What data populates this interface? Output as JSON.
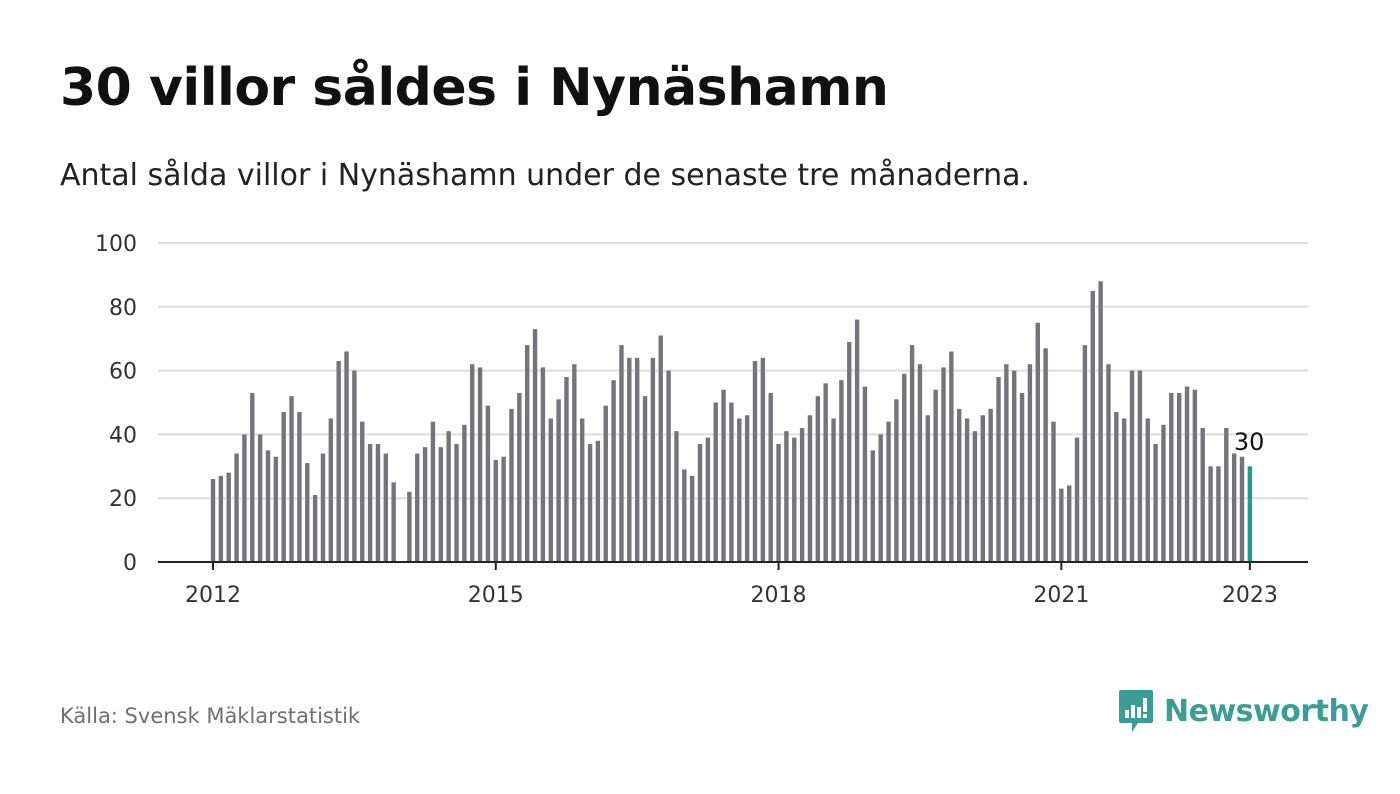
{
  "title": "30 villor såldes i Nynäshamn",
  "subtitle": "Antal sålda villor i Nynäshamn under de senaste tre månaderna.",
  "source": "Källa: Svensk Mäklarstatistik",
  "brand": {
    "name": "Newsworthy",
    "icon": "newsworthy-logo-icon",
    "color": "#3a9e96"
  },
  "colors": {
    "bar": "#74747a",
    "highlight": "#1a9e8f",
    "grid": "#dddddd",
    "axis": "#222222"
  },
  "chart_data": {
    "type": "bar",
    "title": "30 villor såldes i Nynäshamn",
    "subtitle": "Antal sålda villor i Nynäshamn under de senaste tre månaderna.",
    "xlabel": "",
    "ylabel": "",
    "ylim": [
      0,
      100
    ],
    "yticks": [
      0,
      20,
      40,
      60,
      80,
      100
    ],
    "xticks": [
      "2012",
      "2015",
      "2018",
      "2021",
      "2023"
    ],
    "grid": true,
    "start": "2012-01",
    "end": "2023-01",
    "annotation": {
      "label": "30",
      "period": "2023-01",
      "value": 30
    },
    "values": [
      26,
      27,
      28,
      34,
      40,
      53,
      40,
      35,
      33,
      47,
      52,
      47,
      31,
      21,
      34,
      45,
      63,
      66,
      60,
      44,
      37,
      37,
      34,
      25,
      null,
      22,
      34,
      36,
      44,
      36,
      41,
      37,
      43,
      62,
      61,
      49,
      32,
      33,
      48,
      53,
      68,
      73,
      61,
      45,
      51,
      58,
      62,
      45,
      37,
      38,
      49,
      57,
      68,
      64,
      64,
      52,
      64,
      71,
      60,
      41,
      29,
      27,
      37,
      39,
      50,
      54,
      50,
      45,
      46,
      63,
      64,
      53,
      37,
      41,
      39,
      42,
      46,
      52,
      56,
      45,
      57,
      69,
      76,
      55,
      35,
      40,
      44,
      51,
      59,
      68,
      62,
      46,
      54,
      61,
      66,
      48,
      45,
      41,
      46,
      48,
      58,
      62,
      60,
      53,
      62,
      75,
      67,
      44,
      23,
      24,
      39,
      68,
      85,
      88,
      62,
      47,
      45,
      60,
      60,
      45,
      37,
      43,
      53,
      53,
      55,
      54,
      42,
      30,
      30,
      42,
      34,
      33,
      30
    ]
  }
}
